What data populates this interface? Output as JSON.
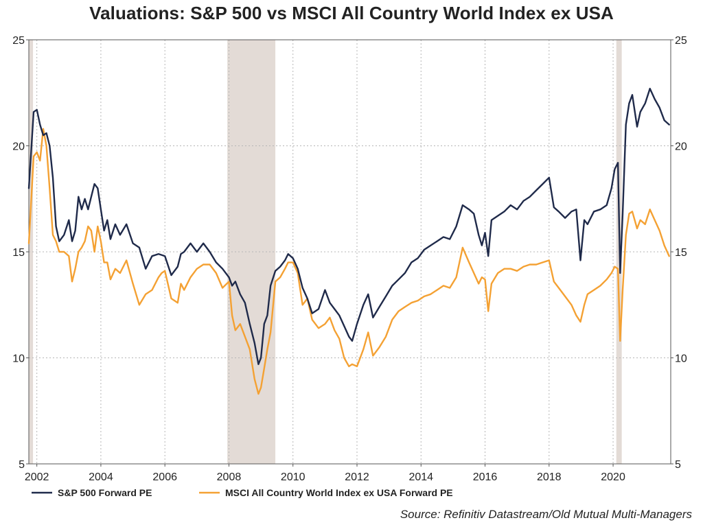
{
  "chart_data": {
    "type": "line",
    "title": "Valuations: S&P 500 vs MSCI All Country World Index ex USA",
    "source": "Source: Refinitiv Datastream/Old Mutual Multi-Managers",
    "xlim": [
      2001.75,
      2021.8
    ],
    "ylim": [
      5,
      25
    ],
    "x_ticks": [
      2002,
      2004,
      2006,
      2008,
      2010,
      2012,
      2014,
      2016,
      2018,
      2020
    ],
    "x_tick_labels": [
      "2002",
      "2004",
      "2006",
      "2008",
      "2010",
      "2012",
      "2014",
      "2016",
      "2018",
      "2020"
    ],
    "y_ticks": [
      5,
      10,
      15,
      20,
      25
    ],
    "y_tick_labels": [
      "5",
      "10",
      "15",
      "20",
      "25"
    ],
    "grid": true,
    "legend_position": "bottom-left",
    "recessions": [
      [
        2001.75,
        2001.88
      ],
      [
        2007.95,
        2009.45
      ],
      [
        2020.1,
        2020.27
      ]
    ],
    "colors": {
      "sp500": "#1f2a4a",
      "msci": "#f4a133",
      "recession": "#e3dbd6",
      "grid": "#b5b5b5",
      "axis": "#555555"
    },
    "series": [
      {
        "name": "S&P 500 Forward PE",
        "color": "#1f2a4a",
        "x": [
          2001.75,
          2001.9,
          2002.0,
          2002.1,
          2002.2,
          2002.3,
          2002.4,
          2002.5,
          2002.6,
          2002.7,
          2002.85,
          2003.0,
          2003.1,
          2003.2,
          2003.3,
          2003.4,
          2003.5,
          2003.6,
          2003.7,
          2003.8,
          2003.9,
          2004.0,
          2004.1,
          2004.2,
          2004.3,
          2004.45,
          2004.6,
          2004.8,
          2005.0,
          2005.2,
          2005.4,
          2005.6,
          2005.8,
          2005.9,
          2006.0,
          2006.2,
          2006.4,
          2006.5,
          2006.6,
          2006.8,
          2007.0,
          2007.2,
          2007.4,
          2007.6,
          2007.8,
          2008.0,
          2008.1,
          2008.2,
          2008.35,
          2008.5,
          2008.65,
          2008.8,
          2008.92,
          2009.0,
          2009.1,
          2009.2,
          2009.3,
          2009.45,
          2009.6,
          2009.75,
          2009.85,
          2010.0,
          2010.15,
          2010.3,
          2010.45,
          2010.6,
          2010.8,
          2011.0,
          2011.15,
          2011.3,
          2011.45,
          2011.6,
          2011.75,
          2011.85,
          2012.0,
          2012.2,
          2012.35,
          2012.5,
          2012.7,
          2012.9,
          2013.1,
          2013.3,
          2013.5,
          2013.7,
          2013.9,
          2014.1,
          2014.3,
          2014.5,
          2014.7,
          2014.9,
          2015.1,
          2015.3,
          2015.5,
          2015.65,
          2015.8,
          2015.9,
          2016.0,
          2016.1,
          2016.2,
          2016.4,
          2016.6,
          2016.8,
          2017.0,
          2017.2,
          2017.4,
          2017.6,
          2017.8,
          2018.0,
          2018.15,
          2018.3,
          2018.5,
          2018.7,
          2018.85,
          2018.98,
          2019.1,
          2019.2,
          2019.4,
          2019.6,
          2019.8,
          2019.95,
          2020.05,
          2020.15,
          2020.22,
          2020.3,
          2020.4,
          2020.5,
          2020.6,
          2020.75,
          2020.85,
          2021.0,
          2021.15,
          2021.3,
          2021.45,
          2021.6,
          2021.75
        ],
        "values": [
          18.0,
          21.6,
          21.7,
          21.0,
          20.5,
          20.6,
          20.0,
          18.5,
          16.2,
          15.5,
          15.8,
          16.5,
          15.5,
          16.0,
          17.6,
          17.0,
          17.5,
          17.0,
          17.6,
          18.2,
          18.0,
          17.0,
          16.0,
          16.5,
          15.6,
          16.3,
          15.8,
          16.3,
          15.4,
          15.2,
          14.2,
          14.8,
          14.9,
          14.85,
          14.8,
          13.9,
          14.3,
          14.9,
          15.0,
          15.4,
          15.0,
          15.4,
          15.0,
          14.5,
          14.2,
          13.8,
          13.4,
          13.6,
          13.0,
          12.6,
          11.6,
          10.7,
          9.7,
          10.0,
          11.6,
          12.0,
          13.4,
          14.1,
          14.3,
          14.6,
          14.9,
          14.7,
          14.2,
          13.3,
          12.8,
          12.1,
          12.3,
          13.2,
          12.6,
          12.3,
          12.0,
          11.5,
          11.0,
          10.8,
          11.6,
          12.5,
          13.0,
          11.9,
          12.4,
          12.9,
          13.4,
          13.7,
          14.0,
          14.5,
          14.7,
          15.1,
          15.3,
          15.5,
          15.7,
          15.6,
          16.2,
          17.2,
          17.0,
          16.8,
          15.8,
          15.3,
          15.9,
          14.8,
          16.5,
          16.7,
          16.9,
          17.2,
          17.0,
          17.4,
          17.6,
          17.9,
          18.2,
          18.5,
          17.1,
          16.9,
          16.6,
          16.9,
          17.0,
          14.6,
          16.5,
          16.3,
          16.9,
          17.0,
          17.2,
          18.0,
          18.9,
          19.2,
          14.0,
          16.8,
          21.0,
          22.0,
          22.4,
          20.9,
          21.6,
          22.0,
          22.7,
          22.2,
          21.8,
          21.2,
          21.0
        ],
        "data_labels": []
      },
      {
        "name": "MSCI All Country World Index ex USA Forward PE",
        "color": "#f4a133",
        "x": [
          2001.75,
          2001.9,
          2002.0,
          2002.1,
          2002.2,
          2002.3,
          2002.4,
          2002.5,
          2002.6,
          2002.7,
          2002.85,
          2003.0,
          2003.1,
          2003.2,
          2003.3,
          2003.4,
          2003.5,
          2003.6,
          2003.7,
          2003.8,
          2003.9,
          2004.0,
          2004.1,
          2004.2,
          2004.3,
          2004.45,
          2004.6,
          2004.8,
          2005.0,
          2005.2,
          2005.4,
          2005.6,
          2005.8,
          2005.9,
          2006.0,
          2006.2,
          2006.4,
          2006.5,
          2006.6,
          2006.8,
          2007.0,
          2007.2,
          2007.4,
          2007.6,
          2007.8,
          2008.0,
          2008.1,
          2008.2,
          2008.35,
          2008.5,
          2008.65,
          2008.8,
          2008.92,
          2009.0,
          2009.1,
          2009.2,
          2009.3,
          2009.45,
          2009.6,
          2009.75,
          2009.85,
          2010.0,
          2010.15,
          2010.3,
          2010.45,
          2010.6,
          2010.8,
          2011.0,
          2011.15,
          2011.3,
          2011.45,
          2011.6,
          2011.75,
          2011.85,
          2012.0,
          2012.2,
          2012.35,
          2012.5,
          2012.7,
          2012.9,
          2013.1,
          2013.3,
          2013.5,
          2013.7,
          2013.9,
          2014.1,
          2014.3,
          2014.5,
          2014.7,
          2014.9,
          2015.1,
          2015.3,
          2015.5,
          2015.65,
          2015.8,
          2015.9,
          2016.0,
          2016.1,
          2016.2,
          2016.4,
          2016.6,
          2016.8,
          2017.0,
          2017.2,
          2017.4,
          2017.6,
          2017.8,
          2018.0,
          2018.15,
          2018.3,
          2018.5,
          2018.7,
          2018.85,
          2018.98,
          2019.1,
          2019.2,
          2019.4,
          2019.6,
          2019.8,
          2019.95,
          2020.05,
          2020.15,
          2020.22,
          2020.3,
          2020.4,
          2020.5,
          2020.6,
          2020.75,
          2020.85,
          2021.0,
          2021.15,
          2021.3,
          2021.45,
          2021.6,
          2021.75
        ],
        "values": [
          15.4,
          19.5,
          19.7,
          19.3,
          20.8,
          20.0,
          18.0,
          15.8,
          15.5,
          15.0,
          15.0,
          14.8,
          13.6,
          14.2,
          15.0,
          15.2,
          15.5,
          16.2,
          16.0,
          15.0,
          16.2,
          15.5,
          14.5,
          14.5,
          13.7,
          14.2,
          14.0,
          14.6,
          13.5,
          12.5,
          13.0,
          13.2,
          13.8,
          14.0,
          14.1,
          12.8,
          12.6,
          13.5,
          13.2,
          13.8,
          14.2,
          14.4,
          14.4,
          14.0,
          13.3,
          13.6,
          12.0,
          11.3,
          11.6,
          11.0,
          10.4,
          9.0,
          8.3,
          8.6,
          9.5,
          10.4,
          11.2,
          13.6,
          13.8,
          14.2,
          14.5,
          14.5,
          14.0,
          12.5,
          12.8,
          11.8,
          11.4,
          11.6,
          11.9,
          11.3,
          10.9,
          10.0,
          9.6,
          9.7,
          9.6,
          10.4,
          11.2,
          10.1,
          10.5,
          11.0,
          11.8,
          12.2,
          12.4,
          12.6,
          12.7,
          12.9,
          13.0,
          13.2,
          13.4,
          13.3,
          13.8,
          15.2,
          14.5,
          14.0,
          13.5,
          13.8,
          13.7,
          12.2,
          13.5,
          14.0,
          14.2,
          14.2,
          14.1,
          14.3,
          14.4,
          14.4,
          14.5,
          14.6,
          13.6,
          13.3,
          12.9,
          12.5,
          12.0,
          11.7,
          12.5,
          13.0,
          13.2,
          13.4,
          13.7,
          14.0,
          14.3,
          14.2,
          10.8,
          13.2,
          15.8,
          16.8,
          16.9,
          16.1,
          16.5,
          16.3,
          17.0,
          16.5,
          16.0,
          15.3,
          14.8
        ],
        "data_labels": []
      }
    ]
  }
}
